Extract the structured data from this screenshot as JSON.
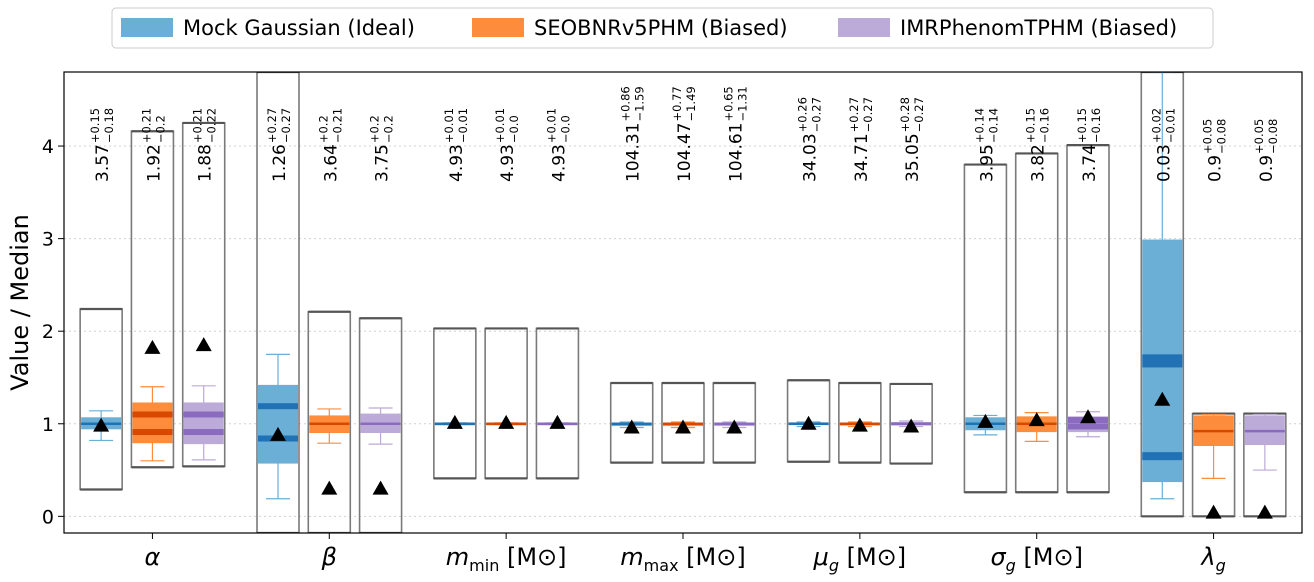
{
  "chart_data": {
    "type": "box",
    "ylabel": "Value / Median",
    "ylim": [
      -0.18,
      4.8
    ],
    "yticks": [
      0,
      1,
      2,
      3,
      4
    ],
    "grid": "horizontal-dotted",
    "legend_placement": "top-center",
    "series": [
      {
        "name": "Mock Gaussian (Ideal)",
        "color": "#6baed6",
        "median_color": "#2171b5"
      },
      {
        "name": "SEOBNRv5PHM (Biased)",
        "color": "#fd8d3c",
        "median_color": "#d94801"
      },
      {
        "name": "IMRPhenomTPHM (Biased)",
        "color": "#bcaad8",
        "median_color": "#8a6bbf"
      }
    ],
    "categories": [
      {
        "label": "α",
        "boxes": [
          {
            "series": 0,
            "q1": 0.94,
            "q3": 1.07,
            "whisker_low": 0.82,
            "whisker_high": 1.14,
            "median_line": 1.0,
            "truth": 0.98,
            "prior_low": 0.29,
            "prior_high": 2.24,
            "ann_main": "3.57",
            "ann_sup": "+0.15",
            "ann_sub": "−0.18"
          },
          {
            "series": 1,
            "q1": 0.79,
            "q3": 1.23,
            "whisker_low": 0.6,
            "whisker_high": 1.4,
            "median_line": 1.1,
            "median_line2": 0.9,
            "truth": 1.82,
            "prior_low": 0.53,
            "prior_high": 4.16,
            "ann_main": "1.92",
            "ann_sup": "+0.21",
            "ann_sub": "−0.2"
          },
          {
            "series": 2,
            "q1": 0.78,
            "q3": 1.23,
            "whisker_low": 0.61,
            "whisker_high": 1.41,
            "median_line": 1.1,
            "median_line2": 0.9,
            "truth": 1.85,
            "prior_low": 0.54,
            "prior_high": 4.25,
            "ann_main": "1.88",
            "ann_sup": "+0.21",
            "ann_sub": "−0.22"
          }
        ]
      },
      {
        "label": "β",
        "boxes": [
          {
            "series": 0,
            "q1": 0.57,
            "q3": 1.42,
            "whisker_low": 0.19,
            "whisker_high": 1.75,
            "median_line": 1.19,
            "median_line2": 0.83,
            "truth": 0.88,
            "prior_low": -0.18,
            "prior_high": 4.8,
            "ann_main": "1.26",
            "ann_sup": "+0.27",
            "ann_sub": "−0.27"
          },
          {
            "series": 1,
            "q1": 0.9,
            "q3": 1.09,
            "whisker_low": 0.79,
            "whisker_high": 1.16,
            "median_line": 1.0,
            "truth": 0.3,
            "prior_low": -0.18,
            "prior_high": 2.21,
            "ann_main": "3.64",
            "ann_sup": "+0.2",
            "ann_sub": "−0.21"
          },
          {
            "series": 2,
            "q1": 0.9,
            "q3": 1.11,
            "whisker_low": 0.78,
            "whisker_high": 1.17,
            "median_line": 1.0,
            "truth": 0.3,
            "prior_low": -0.18,
            "prior_high": 2.14,
            "ann_main": "3.75",
            "ann_sup": "+0.2",
            "ann_sub": "−0.2"
          }
        ]
      },
      {
        "label": "m_min [M_⊙]",
        "boxes": [
          {
            "series": 0,
            "q1": 0.995,
            "q3": 1.005,
            "whisker_low": 0.99,
            "whisker_high": 1.01,
            "median_line": 1.0,
            "truth": 1.01,
            "prior_low": 0.41,
            "prior_high": 2.03,
            "ann_main": "4.93",
            "ann_sup": "+0.01",
            "ann_sub": "−0.01"
          },
          {
            "series": 1,
            "q1": 0.995,
            "q3": 1.005,
            "whisker_low": 0.99,
            "whisker_high": 1.01,
            "median_line": 1.0,
            "truth": 1.01,
            "prior_low": 0.41,
            "prior_high": 2.03,
            "ann_main": "4.93",
            "ann_sup": "+0.01",
            "ann_sub": "−0.0"
          },
          {
            "series": 2,
            "q1": 0.995,
            "q3": 1.005,
            "whisker_low": 0.99,
            "whisker_high": 1.01,
            "median_line": 1.0,
            "truth": 1.01,
            "prior_low": 0.41,
            "prior_high": 2.03,
            "ann_main": "4.93",
            "ann_sup": "+0.01",
            "ann_sub": "−0.0"
          }
        ]
      },
      {
        "label": "m_max [M_⊙]",
        "boxes": [
          {
            "series": 0,
            "q1": 0.975,
            "q3": 1.01,
            "whisker_low": 0.96,
            "whisker_high": 1.02,
            "median_line": 1.0,
            "truth": 0.96,
            "prior_low": 0.58,
            "prior_high": 1.44,
            "ann_main": "104.31",
            "ann_sup": "+0.86",
            "ann_sub": "−1.59"
          },
          {
            "series": 1,
            "q1": 0.975,
            "q3": 1.01,
            "whisker_low": 0.96,
            "whisker_high": 1.02,
            "median_line": 1.0,
            "truth": 0.96,
            "prior_low": 0.58,
            "prior_high": 1.44,
            "ann_main": "104.47",
            "ann_sup": "+0.77",
            "ann_sub": "−1.49"
          },
          {
            "series": 2,
            "q1": 0.975,
            "q3": 1.01,
            "whisker_low": 0.96,
            "whisker_high": 1.02,
            "median_line": 1.0,
            "truth": 0.96,
            "prior_low": 0.58,
            "prior_high": 1.44,
            "ann_main": "104.61",
            "ann_sup": "+0.65",
            "ann_sub": "−1.31"
          }
        ]
      },
      {
        "label": "μ_g [M_⊙]",
        "boxes": [
          {
            "series": 0,
            "q1": 0.985,
            "q3": 1.015,
            "whisker_low": 0.97,
            "whisker_high": 1.02,
            "median_line": 1.0,
            "truth": 1.0,
            "prior_low": 0.59,
            "prior_high": 1.47,
            "ann_main": "34.03",
            "ann_sup": "+0.26",
            "ann_sub": "−0.27"
          },
          {
            "series": 1,
            "q1": 0.98,
            "q3": 1.01,
            "whisker_low": 0.97,
            "whisker_high": 1.02,
            "median_line": 1.0,
            "truth": 0.98,
            "prior_low": 0.58,
            "prior_high": 1.44,
            "ann_main": "34.71",
            "ann_sup": "+0.27",
            "ann_sub": "−0.27"
          },
          {
            "series": 2,
            "q1": 0.98,
            "q3": 1.02,
            "whisker_low": 0.97,
            "whisker_high": 1.03,
            "median_line": 1.0,
            "truth": 0.97,
            "prior_low": 0.57,
            "prior_high": 1.43,
            "ann_main": "35.05",
            "ann_sup": "+0.28",
            "ann_sub": "−0.27"
          }
        ]
      },
      {
        "label": "σ_g [M_⊙]",
        "boxes": [
          {
            "series": 0,
            "q1": 0.93,
            "q3": 1.07,
            "whisker_low": 0.88,
            "whisker_high": 1.09,
            "median_line": 1.0,
            "truth": 1.02,
            "prior_low": 0.26,
            "prior_high": 3.8,
            "ann_main": "3.95",
            "ann_sup": "+0.14",
            "ann_sub": "−0.14"
          },
          {
            "series": 1,
            "q1": 0.91,
            "q3": 1.08,
            "whisker_low": 0.81,
            "whisker_high": 1.12,
            "median_line": 1.0,
            "truth": 1.04,
            "prior_low": 0.26,
            "prior_high": 3.92,
            "ann_main": "3.82",
            "ann_sup": "+0.15",
            "ann_sub": "−0.16"
          },
          {
            "series": 2,
            "q1": 0.91,
            "q3": 1.08,
            "whisker_low": 0.86,
            "whisker_high": 1.13,
            "median_line": 1.04,
            "median_line2": 0.96,
            "truth": 1.07,
            "prior_low": 0.26,
            "prior_high": 4.01,
            "ann_main": "3.74",
            "ann_sup": "+0.15",
            "ann_sub": "−0.16"
          }
        ]
      },
      {
        "label": "λ_g",
        "boxes": [
          {
            "series": 0,
            "q1": 0.37,
            "q3": 2.99,
            "whisker_low": 0.19,
            "whisker_high": 4.8,
            "median_line": 1.63,
            "median_line2": 0.65,
            "band_high": 1.75,
            "truth": 1.26,
            "prior_low": 0.0,
            "prior_high": 4.8,
            "ann_main": "0.03",
            "ann_sup": "+0.02",
            "ann_sub": "−0.01"
          },
          {
            "series": 1,
            "q1": 0.76,
            "q3": 1.09,
            "whisker_low": 0.41,
            "whisker_high": 1.1,
            "median_line": 0.92,
            "truth": 0.04,
            "prior_low": 0.0,
            "prior_high": 1.11,
            "ann_main": "0.9",
            "ann_sup": "+0.05",
            "ann_sub": "−0.08"
          },
          {
            "series": 2,
            "q1": 0.77,
            "q3": 1.09,
            "whisker_low": 0.5,
            "whisker_high": 1.1,
            "median_line": 0.92,
            "truth": 0.04,
            "prior_low": 0.0,
            "prior_high": 1.11,
            "ann_main": "0.9",
            "ann_sup": "+0.05",
            "ann_sub": "−0.08"
          }
        ]
      }
    ]
  }
}
